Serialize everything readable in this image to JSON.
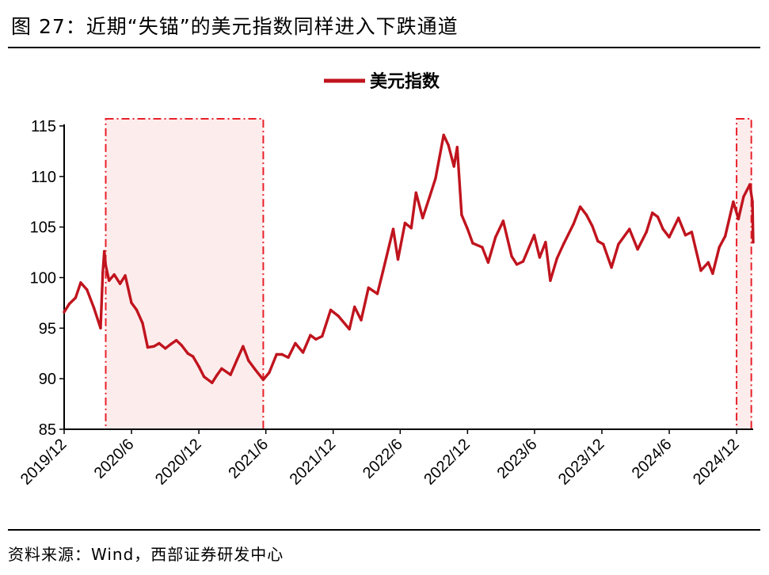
{
  "header": {
    "title": "图 27：近期“失锚”的美元指数同样进入下跌通道"
  },
  "footer": {
    "source": "资料来源：Wind，西部证券研发中心"
  },
  "colors": {
    "series": "#C0141E",
    "shade_fill": "#FDECEC",
    "shade_border": "#E8202A"
  },
  "chart_data": {
    "type": "line",
    "title": "",
    "xlabel": "",
    "ylabel": "",
    "ylim": [
      85,
      115
    ],
    "yticks": [
      85,
      90,
      95,
      100,
      105,
      110,
      115
    ],
    "x_range": [
      "2019-12-01",
      "2025-01-15"
    ],
    "xticks": [
      "2019/12",
      "2020/6",
      "2020/12",
      "2021/6",
      "2021/12",
      "2022/6",
      "2022/12",
      "2023/6",
      "2023/12",
      "2024/6",
      "2024/12"
    ],
    "legend": {
      "position": "top-center",
      "entries": [
        "美元指数"
      ]
    },
    "grid": false,
    "shaded_periods": [
      {
        "start": "2020-03-23",
        "end": "2021-05-25"
      },
      {
        "start": "2024-12-01",
        "end": "2025-01-10"
      }
    ],
    "series": [
      {
        "name": "美元指数",
        "x": [
          "2019-12-01",
          "2019-12-15",
          "2020-01-01",
          "2020-01-15",
          "2020-02-01",
          "2020-02-20",
          "2020-03-09",
          "2020-03-15",
          "2020-03-19",
          "2020-03-23",
          "2020-04-01",
          "2020-04-15",
          "2020-05-01",
          "2020-05-15",
          "2020-06-01",
          "2020-06-15",
          "2020-07-01",
          "2020-07-15",
          "2020-08-01",
          "2020-08-15",
          "2020-09-01",
          "2020-09-15",
          "2020-10-01",
          "2020-10-15",
          "2020-11-01",
          "2020-11-15",
          "2020-12-01",
          "2020-12-15",
          "2021-01-06",
          "2021-01-20",
          "2021-02-01",
          "2021-02-25",
          "2021-03-15",
          "2021-03-31",
          "2021-04-15",
          "2021-05-01",
          "2021-05-25",
          "2021-06-10",
          "2021-06-30",
          "2021-07-15",
          "2021-08-01",
          "2021-08-20",
          "2021-09-10",
          "2021-09-30",
          "2021-10-15",
          "2021-11-01",
          "2021-11-24",
          "2021-12-15",
          "2022-01-14",
          "2022-01-28",
          "2022-02-15",
          "2022-03-07",
          "2022-03-31",
          "2022-04-15",
          "2022-05-13",
          "2022-05-26",
          "2022-06-14",
          "2022-07-01",
          "2022-07-14",
          "2022-08-01",
          "2022-08-20",
          "2022-09-05",
          "2022-09-27",
          "2022-10-10",
          "2022-10-25",
          "2022-11-03",
          "2022-11-15",
          "2022-12-01",
          "2022-12-15",
          "2023-01-10",
          "2023-01-26",
          "2023-02-15",
          "2023-03-08",
          "2023-03-31",
          "2023-04-14",
          "2023-05-01",
          "2023-05-31",
          "2023-06-15",
          "2023-07-01",
          "2023-07-14",
          "2023-08-01",
          "2023-08-20",
          "2023-09-15",
          "2023-10-03",
          "2023-10-20",
          "2023-11-05",
          "2023-11-20",
          "2023-12-05",
          "2023-12-27",
          "2024-01-15",
          "2024-02-14",
          "2024-03-07",
          "2024-03-31",
          "2024-04-16",
          "2024-05-01",
          "2024-05-15",
          "2024-06-01",
          "2024-06-26",
          "2024-07-15",
          "2024-08-01",
          "2024-08-26",
          "2024-09-15",
          "2024-09-27",
          "2024-10-15",
          "2024-10-31",
          "2024-11-22",
          "2024-12-06",
          "2024-12-20",
          "2025-01-06",
          "2025-01-13",
          "2025-01-15"
        ],
        "values": [
          96.6,
          97.4,
          98.0,
          99.5,
          98.8,
          97.0,
          95.0,
          100.5,
          102.6,
          101.2,
          99.7,
          100.3,
          99.4,
          100.2,
          97.5,
          96.8,
          95.5,
          93.1,
          93.2,
          93.5,
          93.0,
          93.4,
          93.8,
          93.3,
          92.5,
          92.2,
          91.2,
          90.2,
          89.6,
          90.4,
          91.0,
          90.4,
          91.9,
          93.2,
          91.8,
          91.0,
          89.9,
          90.6,
          92.4,
          92.4,
          92.1,
          93.5,
          92.6,
          94.3,
          93.9,
          94.2,
          96.8,
          96.2,
          94.9,
          97.1,
          95.8,
          99.0,
          98.4,
          100.6,
          104.8,
          101.8,
          105.4,
          104.9,
          108.4,
          105.9,
          108.0,
          109.8,
          114.1,
          113.1,
          111.0,
          112.9,
          106.2,
          104.8,
          103.4,
          103.0,
          101.5,
          104.0,
          105.6,
          102.1,
          101.3,
          101.6,
          104.2,
          102.0,
          103.5,
          99.7,
          101.9,
          103.4,
          105.3,
          107.0,
          106.2,
          105.1,
          103.6,
          103.3,
          101.0,
          103.3,
          104.8,
          102.8,
          104.5,
          106.4,
          106.0,
          104.8,
          104.0,
          105.9,
          104.2,
          104.5,
          100.7,
          101.5,
          100.4,
          103.0,
          104.1,
          107.5,
          105.8,
          108.0,
          109.2,
          107.5,
          103.5
        ]
      }
    ]
  }
}
